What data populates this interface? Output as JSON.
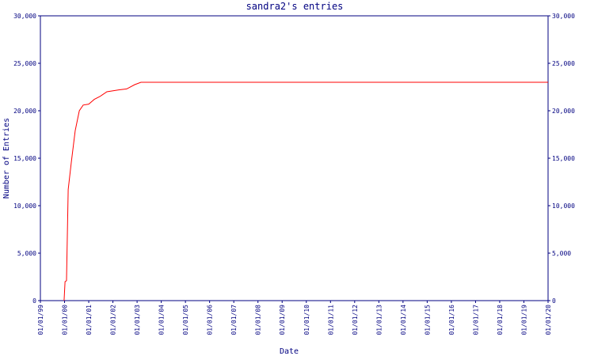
{
  "chart_data": {
    "type": "line",
    "title": "sandra2's entries",
    "xlabel": "Date",
    "ylabel": "Number of Entries",
    "x": [
      1999.98,
      2000.02,
      2000.08,
      2000.15,
      2000.28,
      2000.44,
      2000.61,
      2000.77,
      2001.0,
      2001.23,
      2001.46,
      2001.75,
      2002.24,
      2002.57,
      2002.9,
      2003.16,
      2020.0
    ],
    "series": [
      {
        "name": "sandra2",
        "color": "#ff0000",
        "values": [
          0,
          2000,
          2100,
          11700,
          14600,
          17900,
          20000,
          20600,
          20700,
          21200,
          21500,
          22000,
          22200,
          22300,
          22750,
          23000,
          23000
        ]
      }
    ],
    "xlim": [
      1999,
      2020
    ],
    "xticks": [
      {
        "value": 1999,
        "label": "01/01/99"
      },
      {
        "value": 2000,
        "label": "01/01/00"
      },
      {
        "value": 2001,
        "label": "01/01/01"
      },
      {
        "value": 2002,
        "label": "01/01/02"
      },
      {
        "value": 2003,
        "label": "01/01/03"
      },
      {
        "value": 2004,
        "label": "01/01/04"
      },
      {
        "value": 2005,
        "label": "01/01/05"
      },
      {
        "value": 2006,
        "label": "01/01/06"
      },
      {
        "value": 2007,
        "label": "01/01/07"
      },
      {
        "value": 2008,
        "label": "01/01/08"
      },
      {
        "value": 2009,
        "label": "01/01/09"
      },
      {
        "value": 2010,
        "label": "01/01/10"
      },
      {
        "value": 2011,
        "label": "01/01/11"
      },
      {
        "value": 2012,
        "label": "01/01/12"
      },
      {
        "value": 2013,
        "label": "01/01/13"
      },
      {
        "value": 2014,
        "label": "01/01/14"
      },
      {
        "value": 2015,
        "label": "01/01/15"
      },
      {
        "value": 2016,
        "label": "01/01/16"
      },
      {
        "value": 2017,
        "label": "01/01/17"
      },
      {
        "value": 2018,
        "label": "01/01/18"
      },
      {
        "value": 2019,
        "label": "01/01/19"
      },
      {
        "value": 2020,
        "label": "01/01/20"
      }
    ],
    "ylim": [
      0,
      30000
    ],
    "yticks": [
      0,
      {
        "value": 5000,
        "label": "5,000"
      },
      {
        "value": 10000,
        "label": "10,000"
      },
      {
        "value": 15000,
        "label": "15,000"
      },
      {
        "value": 20000,
        "label": "20,000"
      },
      {
        "value": 25000,
        "label": "25,000"
      },
      {
        "value": 30000,
        "label": "30,000"
      }
    ],
    "grid": false
  }
}
